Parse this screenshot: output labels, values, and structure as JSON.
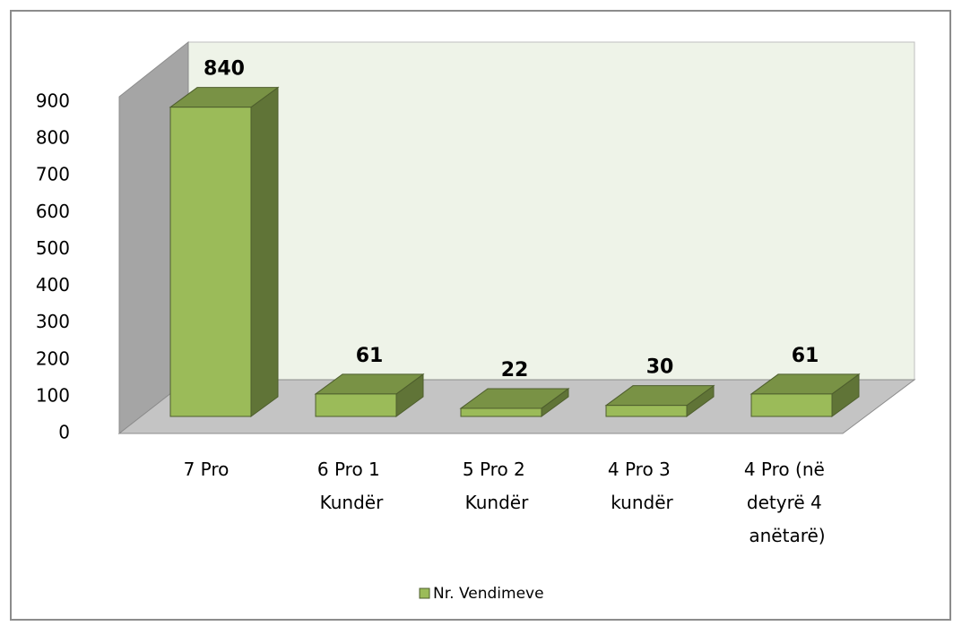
{
  "chart_data": {
    "type": "bar3d",
    "categories": [
      "7 Pro",
      "6 Pro 1 Kundër",
      "5 Pro 2 Kundër",
      "4 Pro 3 kundër",
      "4 Pro (në detyrë 4 anëtarë)"
    ],
    "series": [
      {
        "name": "Nr. Vendimeve",
        "color": "#9bbb59",
        "values": [
          840,
          61,
          22,
          30,
          61
        ]
      }
    ],
    "ylim": [
      0,
      900
    ],
    "yticks": [
      0,
      100,
      200,
      300,
      400,
      500,
      600,
      700,
      800,
      900
    ],
    "legend": "bottom"
  }
}
